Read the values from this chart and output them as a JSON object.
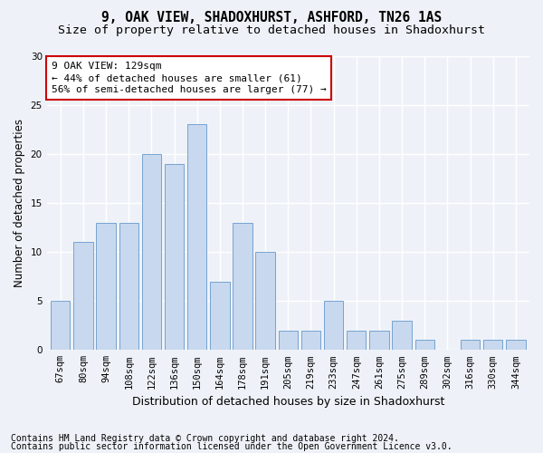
{
  "title": "9, OAK VIEW, SHADOXHURST, ASHFORD, TN26 1AS",
  "subtitle": "Size of property relative to detached houses in Shadoxhurst",
  "xlabel": "Distribution of detached houses by size in Shadoxhurst",
  "ylabel": "Number of detached properties",
  "categories": [
    "67sqm",
    "80sqm",
    "94sqm",
    "108sqm",
    "122sqm",
    "136sqm",
    "150sqm",
    "164sqm",
    "178sqm",
    "191sqm",
    "205sqm",
    "219sqm",
    "233sqm",
    "247sqm",
    "261sqm",
    "275sqm",
    "289sqm",
    "302sqm",
    "316sqm",
    "330sqm",
    "344sqm"
  ],
  "values": [
    5,
    11,
    13,
    13,
    20,
    19,
    23,
    7,
    13,
    10,
    2,
    2,
    5,
    2,
    2,
    3,
    1,
    0,
    1,
    1,
    1
  ],
  "bar_color": "#c8d8ee",
  "bar_edge_color": "#6699cc",
  "annotation_line1": "9 OAK VIEW: 129sqm",
  "annotation_line2": "← 44% of detached houses are smaller (61)",
  "annotation_line3": "56% of semi-detached houses are larger (77) →",
  "annotation_box_color": "#ffffff",
  "annotation_box_edge_color": "#cc0000",
  "ylim": [
    0,
    30
  ],
  "yticks": [
    0,
    5,
    10,
    15,
    20,
    25,
    30
  ],
  "footnote1": "Contains HM Land Registry data © Crown copyright and database right 2024.",
  "footnote2": "Contains public sector information licensed under the Open Government Licence v3.0.",
  "title_fontsize": 10.5,
  "subtitle_fontsize": 9.5,
  "xlabel_fontsize": 9,
  "ylabel_fontsize": 8.5,
  "tick_fontsize": 7.5,
  "annotation_fontsize": 8,
  "footnote_fontsize": 7,
  "bg_color": "#eef2f8",
  "grid_color": "#ffffff"
}
